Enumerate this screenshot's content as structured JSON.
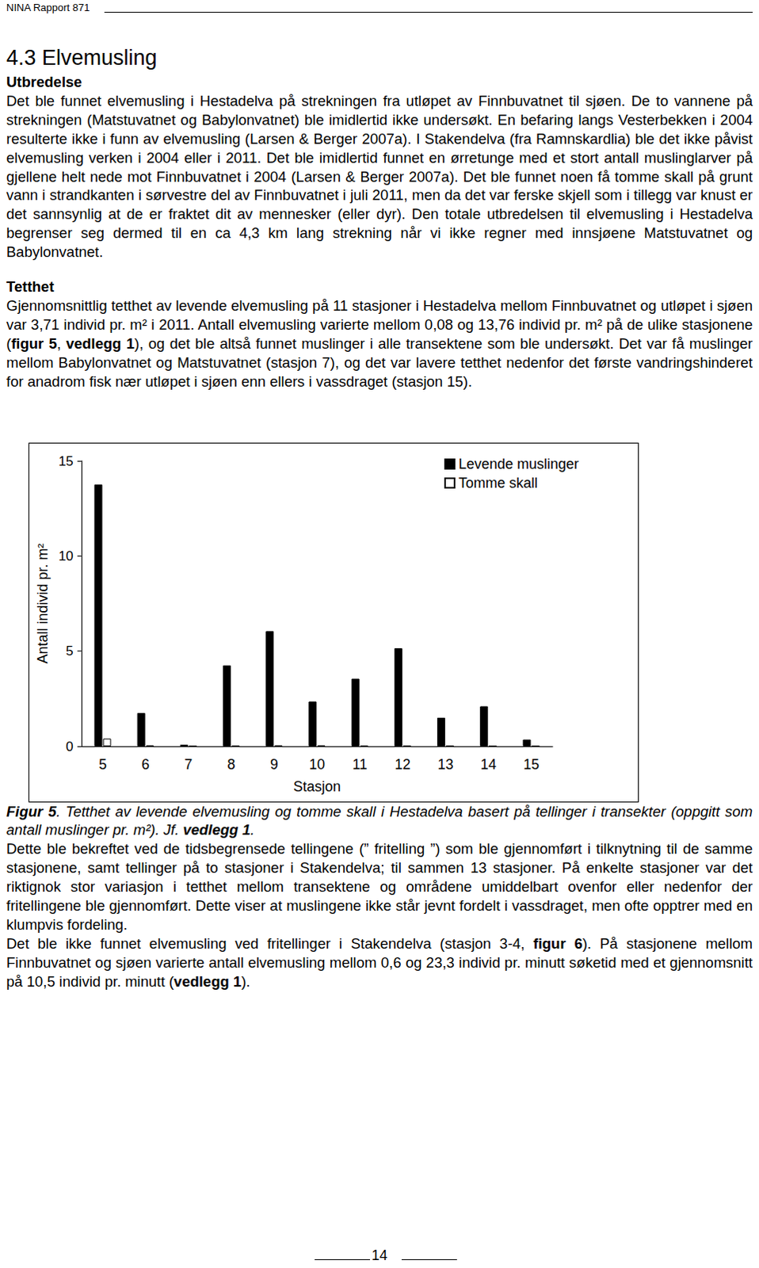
{
  "header": "NINA Rapport 871",
  "title": "4.3 Elvemusling",
  "sections": [
    {
      "heading": "Utbredelse",
      "paragraph": [
        "Det ble funnet elvemusling i Hestadelva på strekningen fra utløpet av Finnbuvatnet til sjøen. De to vannene på strekningen (Matstuvatnet og Babylonvatnet) ble imidlertid ikke undersøkt. En befaring langs Vesterbekken i 2004 resulterte ikke i funn av elvemusling (Larsen & Berger 2007a). I Stakendelva (fra Ramnskardlia) ble det ikke påvist elvemusling verken i 2004 eller i 2011. Det ble imidlertid funnet en ørretunge med et stort antall muslinglarver på gjellene helt nede mot Finnbuvatnet i 2004 (Larsen & Berger 2007a). Det ble funnet noen få tomme skall på grunt vann i strandkanten i sørvestre del av Finnbuvatnet i juli 2011, men da det var ferske skjell som i tillegg var knust er det sannsynlig at de er fraktet dit av mennesker (eller dyr). Den totale utbredelsen til elvemusling i Hestadelva begrenser seg dermed til en ca 4,3 km lang strekning når vi ikke regner med innsjøene Matstuvatnet og Babylonvatnet."
      ]
    },
    {
      "heading": "Tetthet",
      "paragraph": [
        "Gjennomsnittlig tetthet av levende elvemusling på 11 stasjoner i Hestadelva mellom Finnbuvatnet og utløpet i sjøen var 3,71 individ pr. m² i 2011. Antall elvemusling varierte mellom 0,08 og 13,76 individ pr. m² på de ulike stasjonene (",
        {
          "text": "figur 5",
          "bold": true
        },
        ", ",
        {
          "text": "vedlegg 1",
          "bold": true
        },
        "), og det ble altså funnet muslinger i alle transektene som ble undersøkt. Det var få muslinger mellom Babylonvatnet og Matstuvatnet (stasjon 7), og det var lavere tetthet nedenfor det første vandringshinderet for anadrom fisk nær utløpet i sjøen enn ellers i vassdraget (stasjon 15)."
      ]
    }
  ],
  "chart_data": {
    "type": "bar",
    "categories": [
      5,
      6,
      7,
      8,
      9,
      10,
      11,
      12,
      13,
      14,
      15
    ],
    "series": [
      {
        "name": "Levende muslinger",
        "color": "#000000",
        "values": [
          13.76,
          1.75,
          0.08,
          4.25,
          6.05,
          2.35,
          3.55,
          5.15,
          1.5,
          2.1,
          0.35
        ]
      },
      {
        "name": "Tomme skall",
        "color": "#ffffff",
        "values": [
          0.4,
          0.05,
          0,
          0.03,
          0.05,
          0.05,
          0.03,
          0.03,
          0.03,
          0,
          0
        ]
      }
    ],
    "x_label": "Stasjon",
    "y_label": "Antall individ pr. m²",
    "ylim": [
      0,
      15
    ],
    "yticks": [
      0,
      5,
      10,
      15
    ],
    "grid": false,
    "legend": "top-right"
  },
  "caption": [
    {
      "text": "Figur 5",
      "bold": true
    },
    ". Tetthet av levende elvemusling og tomme skall i Hestadelva basert på tellinger i transekter (oppgitt som antall muslinger pr. m²). Jf. ",
    {
      "text": "vedlegg 1",
      "bold": true
    },
    "."
  ],
  "after": [
    [
      "Dette ble bekreftet ved de tidsbegrensede tellingene (” fritelling ”) som ble gjennomført i tilknytning til de samme stasjonene, samt tellinger på to stasjoner i Stakendelva; til sammen 13 stasjoner. På enkelte stasjoner var det riktignok stor variasjon i tetthet mellom transektene og områdene umiddelbart ovenfor eller nedenfor der fritellingene ble gjennomført. Dette viser at muslingene ikke står jevnt fordelt i vassdraget, men ofte opptrer med en klumpvis fordeling."
    ],
    [
      "Det ble ikke funnet elvemusling ved fritellinger i Stakendelva (stasjon 3-4, ",
      {
        "text": "figur 6",
        "bold": true
      },
      "). På stasjonene mellom Finnbuvatnet og sjøen varierte antall elvemusling mellom 0,6 og 23,3 individ pr. minutt søketid med et gjennomsnitt på 10,5 individ pr. minutt (",
      {
        "text": "vedlegg 1",
        "bold": true
      },
      ")."
    ]
  ],
  "page_number": 14
}
